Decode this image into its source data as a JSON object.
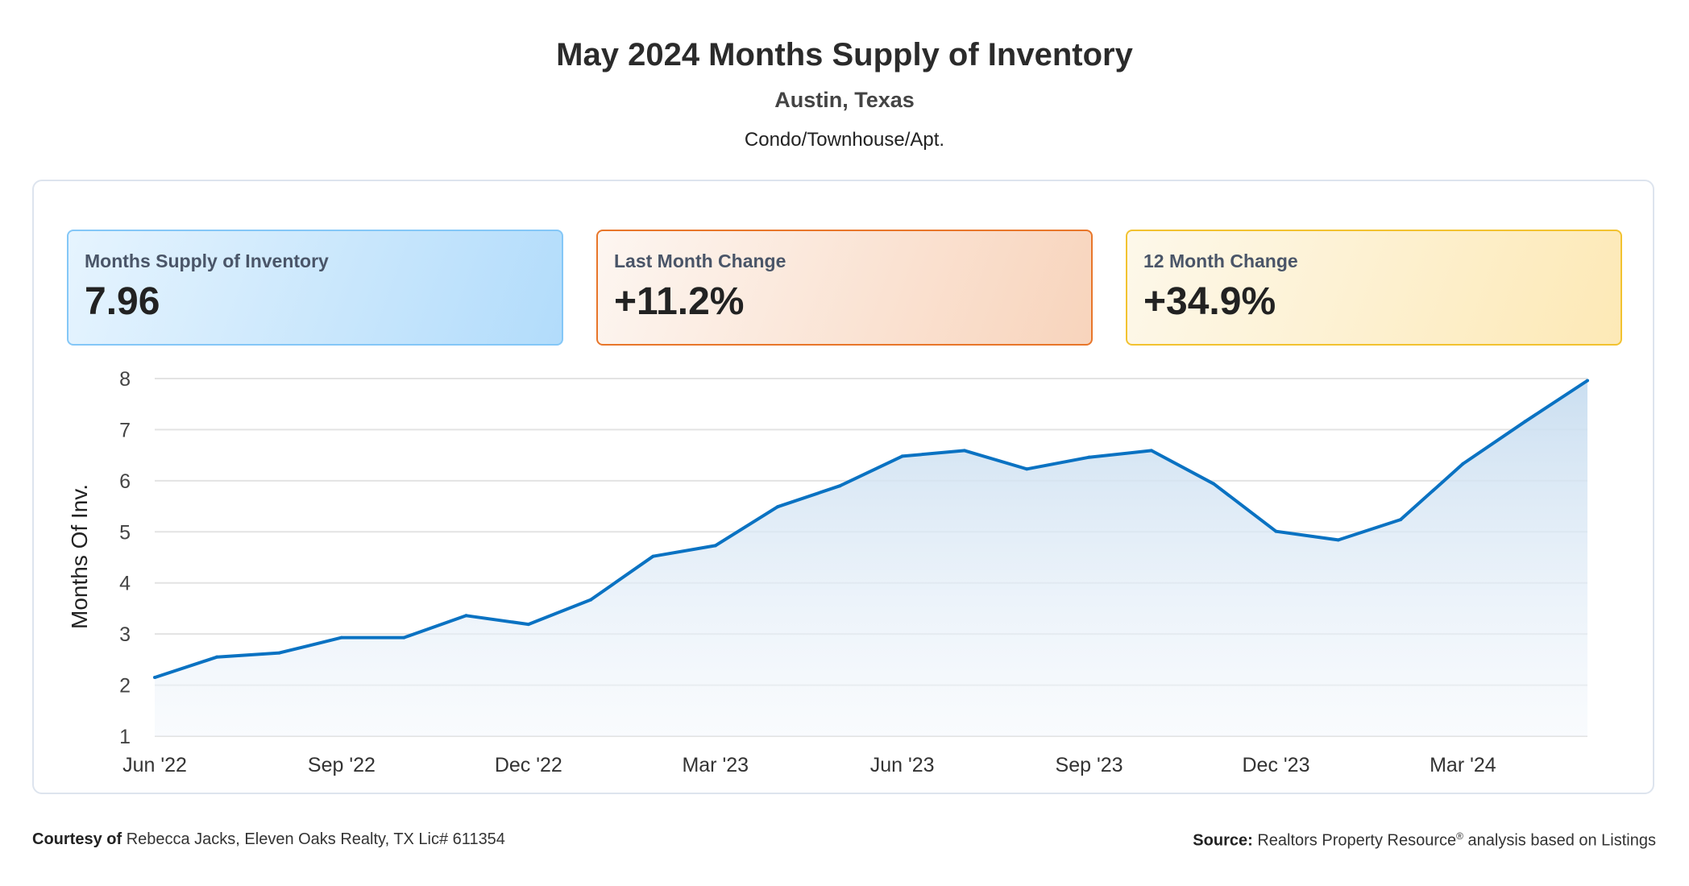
{
  "header": {
    "title": "May 2024 Months Supply of Inventory",
    "location": "Austin, Texas",
    "property_type": "Condo/Townhouse/Apt."
  },
  "cards": [
    {
      "label": "Months Supply of Inventory",
      "value": "7.96"
    },
    {
      "label": "Last Month Change",
      "value": "+11.2%"
    },
    {
      "label": "12 Month Change",
      "value": "+34.9%"
    }
  ],
  "footer": {
    "courtesy_label": "Courtesy of",
    "courtesy_text": "Rebecca Jacks, Eleven Oaks Realty, TX Lic# 611354",
    "source_label": "Source:",
    "source_text": "Realtors Property Resource",
    "source_reg": "®",
    "source_tail": " analysis based on Listings"
  },
  "colors": {
    "line": "#0a72c2",
    "fill": "#cfe2f3",
    "grid": "#e3e3e3"
  },
  "chart_data": {
    "type": "area",
    "title": "May 2024 Months Supply of Inventory",
    "xlabel": "",
    "ylabel": "Months Of Inv.",
    "ylim": [
      1,
      8
    ],
    "yticks": [
      "1",
      "2",
      "3",
      "4",
      "5",
      "6",
      "7",
      "8"
    ],
    "grid": true,
    "x": [
      "Jun '22",
      "Jul '22",
      "Aug '22",
      "Sep '22",
      "Oct '22",
      "Nov '22",
      "Dec '22",
      "Jan '23",
      "Feb '23",
      "Mar '23",
      "Apr '23",
      "May '23",
      "Jun '23",
      "Jul '23",
      "Aug '23",
      "Sep '23",
      "Oct '23",
      "Nov '23",
      "Dec '23",
      "Jan '24",
      "Feb '24",
      "Mar '24",
      "Apr '24",
      "May '24"
    ],
    "xtick_labels": [
      "Jun '22",
      "Sep '22",
      "Dec '22",
      "Mar '23",
      "Jun '23",
      "Sep '23",
      "Dec '23",
      "Mar '24"
    ],
    "series": [
      {
        "name": "Months Supply of Inventory",
        "values": [
          2.15,
          2.55,
          2.63,
          2.93,
          2.93,
          3.36,
          3.19,
          3.67,
          4.52,
          4.73,
          5.49,
          5.9,
          6.48,
          6.59,
          6.23,
          6.46,
          6.59,
          5.94,
          5.01,
          4.84,
          5.24,
          6.33,
          7.16,
          7.96
        ]
      }
    ]
  }
}
